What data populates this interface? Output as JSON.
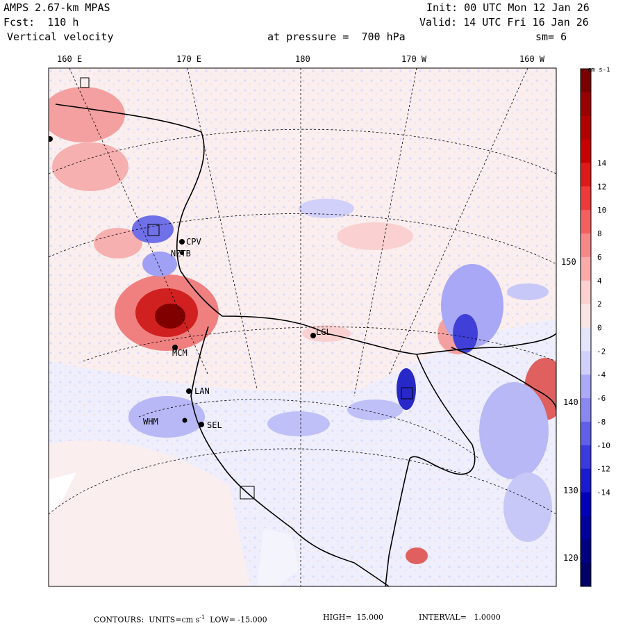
{
  "header": {
    "model": "AMPS 2.67-km MPAS",
    "forecast": "Fcst:  110 h",
    "field": "Vertical velocity",
    "init": "Init: 00 UTC Mon 12 Jan 26",
    "valid": "Valid: 14 UTC Fri 16 Jan 26",
    "level": "at pressure =  700 hPa",
    "smoothing": "sm= 6"
  },
  "longitude_labels": [
    "160 E",
    "170 E",
    "180",
    "170 W",
    "160 W"
  ],
  "latitude_labels": [
    "150 W",
    "140 W",
    "130 W",
    "120 W"
  ],
  "stations": [
    {
      "id": "CPV"
    },
    {
      "id": "NZTB"
    },
    {
      "id": "MCM"
    },
    {
      "id": "LAN"
    },
    {
      "id": "WHM"
    },
    {
      "id": "SEL"
    },
    {
      "id": "LGL"
    }
  ],
  "colorbar": {
    "units": "cm s-1",
    "tick_labels": [
      "14",
      "12",
      "10",
      "8",
      "6",
      "4",
      "2",
      "0",
      "-2",
      "-4",
      "-6",
      "-8",
      "-10",
      "-12",
      "-14"
    ],
    "colors": [
      "#7a0000",
      "#990000",
      "#b20000",
      "#c80000",
      "#dd1a1a",
      "#ee3a3a",
      "#f46060",
      "#f88888",
      "#fbaaaa",
      "#fdd0d0",
      "#fbe4e4",
      "#e4e4fb",
      "#d0d0fb",
      "#aaaaf8",
      "#8888f0",
      "#6060e8",
      "#3a3ae0",
      "#1a1ad0",
      "#0000b8",
      "#00009c",
      "#000080",
      "#000066"
    ]
  },
  "footer": {
    "prefix": "CONTOURS:  UNITS=",
    "units": "cm s",
    "units_exp": "-1",
    "low": "  LOW= -15.000",
    "high": "HIGH=  15.000",
    "interval": "INTERVAL=   1.0000"
  }
}
